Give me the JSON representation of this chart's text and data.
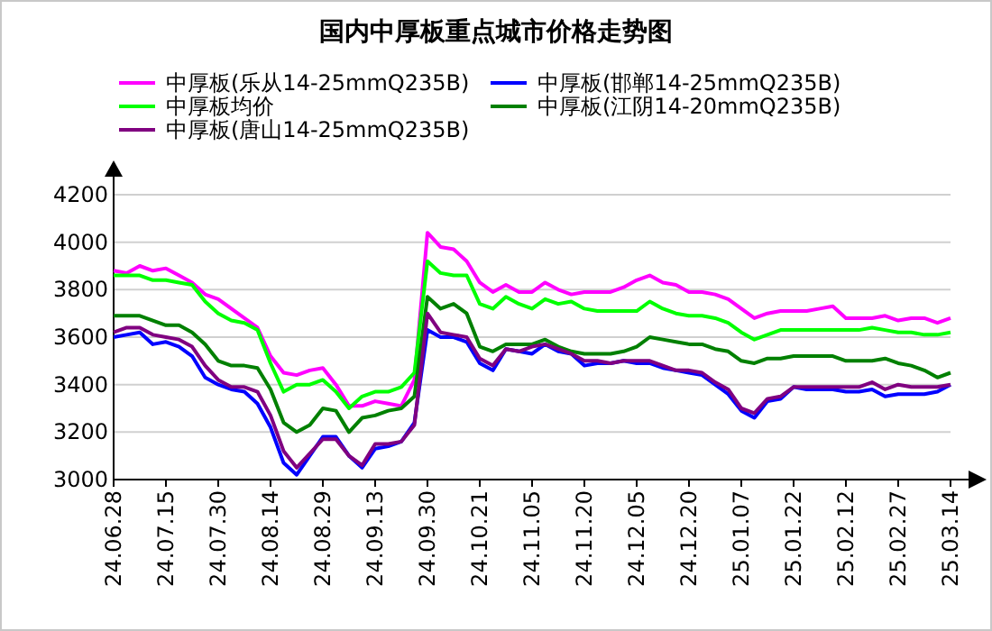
{
  "chart_data": {
    "type": "line",
    "title": "国内中厚板重点城市价格走势图",
    "legend": "top",
    "grid": "y",
    "marker": "none",
    "line_style": "solid",
    "categories": [
      "24.06.28",
      null,
      null,
      null,
      "24.07.15",
      null,
      null,
      null,
      "24.07.30",
      null,
      null,
      null,
      "24.08.14",
      null,
      null,
      null,
      "24.08.29",
      null,
      null,
      null,
      "24.09.13",
      null,
      null,
      null,
      "24.09.30",
      null,
      null,
      null,
      "24.10.21",
      null,
      null,
      null,
      "24.11.05",
      null,
      null,
      null,
      "24.11.20",
      null,
      null,
      null,
      "24.12.05",
      null,
      null,
      null,
      "24.12.20",
      null,
      null,
      null,
      "25.01.07",
      null,
      null,
      null,
      "25.01.22",
      null,
      null,
      null,
      "25.02.12",
      null,
      null,
      null,
      "25.02.27",
      null,
      null,
      null,
      "25.03.14"
    ],
    "ylim": [
      3000,
      4200
    ],
    "yticks": [
      3000,
      3200,
      3400,
      3600,
      3800,
      4000,
      4200
    ],
    "series": [
      {
        "name": "中厚板(乐从14-25mmQ235B)",
        "color": "#ff00ff",
        "values": [
          3880,
          3870,
          3900,
          3880,
          3890,
          3860,
          3830,
          3780,
          3760,
          3720,
          3680,
          3640,
          3520,
          3450,
          3440,
          3460,
          3470,
          3400,
          3310,
          3310,
          3330,
          3320,
          3310,
          3420,
          4040,
          3980,
          3970,
          3920,
          3830,
          3790,
          3820,
          3790,
          3790,
          3830,
          3800,
          3780,
          3790,
          3790,
          3790,
          3810,
          3840,
          3860,
          3830,
          3820,
          3790,
          3790,
          3780,
          3760,
          3720,
          3680,
          3700,
          3710,
          3710,
          3710,
          3720,
          3730,
          3680,
          3680,
          3680,
          3690,
          3670,
          3680,
          3680,
          3660,
          3680
        ]
      },
      {
        "name": "中厚板(邯郸14-25mmQ235B)",
        "color": "#0000ff",
        "values": [
          3600,
          3610,
          3620,
          3570,
          3580,
          3560,
          3520,
          3430,
          3400,
          3380,
          3370,
          3320,
          3220,
          3070,
          3020,
          3100,
          3180,
          3180,
          3100,
          3050,
          3130,
          3140,
          3160,
          3240,
          3630,
          3600,
          3600,
          3580,
          3490,
          3460,
          3550,
          3540,
          3530,
          3570,
          3540,
          3530,
          3480,
          3490,
          3490,
          3500,
          3490,
          3490,
          3470,
          3460,
          3450,
          3440,
          3400,
          3360,
          3290,
          3260,
          3330,
          3340,
          3390,
          3380,
          3380,
          3380,
          3370,
          3370,
          3380,
          3350,
          3360,
          3360,
          3360,
          3370,
          3400
        ]
      },
      {
        "name": "中厚板均价",
        "color": "#00ff00",
        "values": [
          3860,
          3860,
          3860,
          3840,
          3840,
          3830,
          3820,
          3750,
          3700,
          3670,
          3660,
          3630,
          3490,
          3370,
          3400,
          3400,
          3420,
          3370,
          3300,
          3350,
          3370,
          3370,
          3390,
          3450,
          3920,
          3870,
          3860,
          3860,
          3740,
          3720,
          3770,
          3740,
          3720,
          3760,
          3740,
          3750,
          3720,
          3710,
          3710,
          3710,
          3710,
          3750,
          3720,
          3700,
          3690,
          3690,
          3680,
          3660,
          3620,
          3590,
          3610,
          3630,
          3630,
          3630,
          3630,
          3630,
          3630,
          3630,
          3640,
          3630,
          3620,
          3620,
          3610,
          3610,
          3620
        ]
      },
      {
        "name": "中厚板(江阴14-20mmQ235B)",
        "color": "#008000",
        "values": [
          3690,
          3690,
          3690,
          3670,
          3650,
          3650,
          3620,
          3570,
          3500,
          3480,
          3480,
          3470,
          3380,
          3240,
          3200,
          3230,
          3300,
          3290,
          3200,
          3260,
          3270,
          3290,
          3300,
          3350,
          3770,
          3720,
          3740,
          3700,
          3560,
          3540,
          3570,
          3570,
          3570,
          3590,
          3560,
          3540,
          3530,
          3530,
          3530,
          3540,
          3560,
          3600,
          3590,
          3580,
          3570,
          3570,
          3550,
          3540,
          3500,
          3490,
          3510,
          3510,
          3520,
          3520,
          3520,
          3520,
          3500,
          3500,
          3500,
          3510,
          3490,
          3480,
          3460,
          3430,
          3450
        ]
      },
      {
        "name": "中厚板(唐山14-25mmQ235B)",
        "color": "#800080",
        "values": [
          3620,
          3640,
          3640,
          3610,
          3600,
          3590,
          3560,
          3480,
          3420,
          3390,
          3390,
          3370,
          3270,
          3120,
          3050,
          3110,
          3170,
          3170,
          3100,
          3060,
          3150,
          3150,
          3160,
          3230,
          3700,
          3620,
          3610,
          3600,
          3510,
          3480,
          3550,
          3540,
          3560,
          3570,
          3550,
          3530,
          3500,
          3500,
          3490,
          3500,
          3500,
          3500,
          3480,
          3460,
          3460,
          3450,
          3410,
          3380,
          3300,
          3280,
          3340,
          3350,
          3390,
          3390,
          3390,
          3390,
          3390,
          3390,
          3410,
          3380,
          3400,
          3390,
          3390,
          3390,
          3400
        ]
      }
    ]
  }
}
